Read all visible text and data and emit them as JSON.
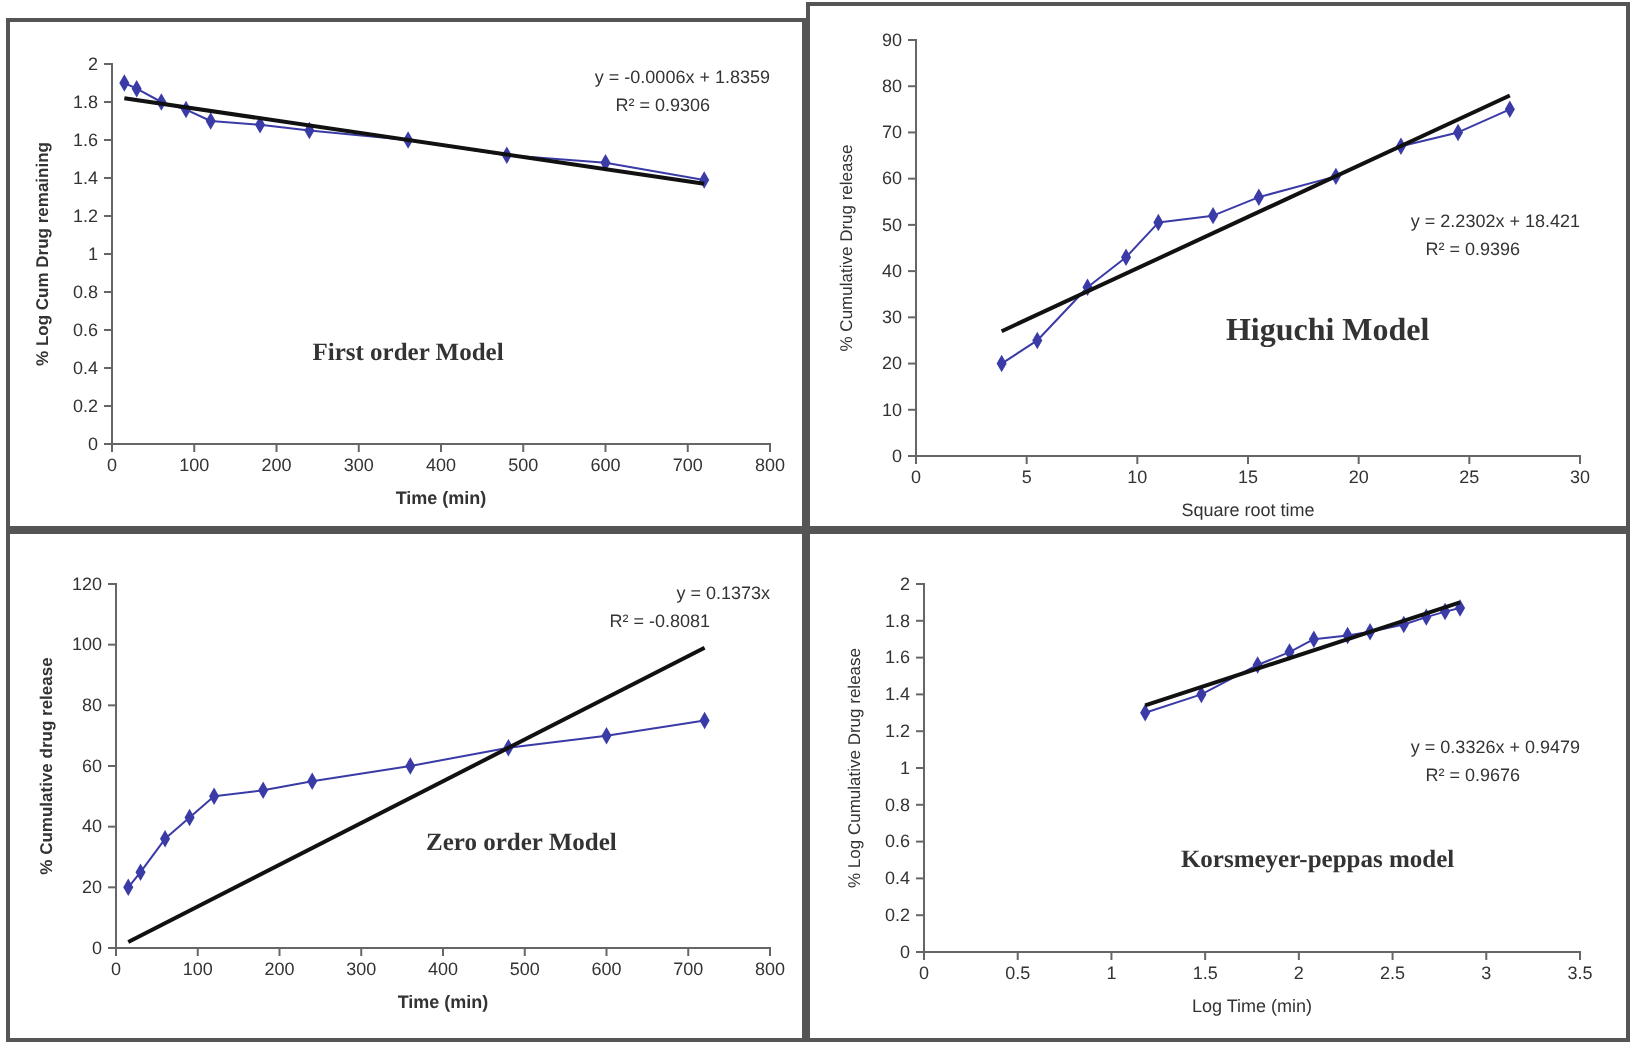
{
  "chart_data": [
    {
      "type": "line",
      "title": "First order Model",
      "xlabel": "Time (min)",
      "ylabel": "% Log Cum Drug remaining",
      "xlim": [
        0,
        800
      ],
      "xticks": [
        0,
        100,
        200,
        300,
        400,
        500,
        600,
        700,
        800
      ],
      "ylim": [
        0,
        2
      ],
      "yticks": [
        0,
        0.2,
        0.4,
        0.6,
        0.8,
        1,
        1.2,
        1.4,
        1.6,
        1.8,
        2
      ],
      "line_style": "solid",
      "annotations": [
        "y = -0.0006x + 1.8359",
        "R² = 0.9306"
      ],
      "series": [
        {
          "color": "#3b3ba8",
          "marker": "diamond",
          "x": [
            15,
            30,
            60,
            90,
            120,
            180,
            240,
            360,
            480,
            600,
            720
          ],
          "values": [
            1.9,
            1.87,
            1.8,
            1.76,
            1.7,
            1.68,
            1.65,
            1.6,
            1.52,
            1.48,
            1.39
          ]
        },
        {
          "color": "#111111",
          "marker": "none",
          "x": [
            15,
            720
          ],
          "values": [
            1.82,
            1.37
          ]
        }
      ]
    },
    {
      "type": "line",
      "title": "Higuchi Model",
      "xlabel": "Square root time",
      "ylabel": "% Cumulative Drug release",
      "xlim": [
        0,
        30
      ],
      "xticks": [
        0,
        5,
        10,
        15,
        20,
        25,
        30
      ],
      "ylim": [
        0,
        90
      ],
      "yticks": [
        0,
        10,
        20,
        30,
        40,
        50,
        60,
        70,
        80,
        90
      ],
      "line_style": "solid",
      "annotations": [
        "y = 2.2302x + 18.421",
        "R² = 0.9396"
      ],
      "series": [
        {
          "color": "#3b3ba8",
          "marker": "diamond",
          "x": [
            3.87,
            5.48,
            7.75,
            9.49,
            10.95,
            13.42,
            15.49,
            18.97,
            21.91,
            24.49,
            26.83
          ],
          "values": [
            20,
            25,
            36.5,
            43,
            50.5,
            52,
            56,
            60.5,
            67,
            70,
            75
          ]
        },
        {
          "color": "#111111",
          "marker": "none",
          "x": [
            3.87,
            26.83
          ],
          "values": [
            27,
            78
          ]
        }
      ]
    },
    {
      "type": "line",
      "title": "Zero order Model",
      "xlabel": "Time (min)",
      "ylabel": "% Cumulative drug release",
      "xlim": [
        0,
        800
      ],
      "xticks": [
        0,
        100,
        200,
        300,
        400,
        500,
        600,
        700,
        800
      ],
      "ylim": [
        0,
        120
      ],
      "yticks": [
        0,
        20,
        40,
        60,
        80,
        100,
        120
      ],
      "line_style": "solid",
      "annotations": [
        "y = 0.1373x",
        "R² = -0.8081"
      ],
      "series": [
        {
          "color": "#3b3ba8",
          "marker": "diamond",
          "x": [
            15,
            30,
            60,
            90,
            120,
            180,
            240,
            360,
            480,
            600,
            720
          ],
          "values": [
            20,
            25,
            36,
            43,
            50,
            52,
            55,
            60,
            66,
            70,
            75
          ]
        },
        {
          "color": "#111111",
          "marker": "none",
          "x": [
            15,
            720
          ],
          "values": [
            2,
            99
          ]
        }
      ]
    },
    {
      "type": "line",
      "title": "Korsmeyer-peppas model",
      "xlabel": "Log Time (min)",
      "ylabel": "% Log Cumulative Drug release",
      "xlim": [
        0,
        3.5
      ],
      "xticks": [
        0,
        0.5,
        1,
        1.5,
        2,
        2.5,
        3,
        3.5
      ],
      "ylim": [
        0,
        2
      ],
      "yticks": [
        0,
        0.2,
        0.4,
        0.6,
        0.8,
        1,
        1.2,
        1.4,
        1.6,
        1.8,
        2
      ],
      "line_style": "solid",
      "annotations": [
        "y = 0.3326x + 0.9479",
        "R² = 0.9676"
      ],
      "series": [
        {
          "color": "#3b3ba8",
          "marker": "diamond",
          "x": [
            1.18,
            1.48,
            1.78,
            1.95,
            2.08,
            2.26,
            2.38,
            2.56,
            2.68,
            2.78,
            2.86
          ],
          "values": [
            1.3,
            1.4,
            1.56,
            1.63,
            1.7,
            1.72,
            1.74,
            1.78,
            1.82,
            1.85,
            1.87
          ]
        },
        {
          "color": "#111111",
          "marker": "none",
          "x": [
            1.18,
            2.86
          ],
          "values": [
            1.34,
            1.9
          ]
        }
      ]
    }
  ]
}
